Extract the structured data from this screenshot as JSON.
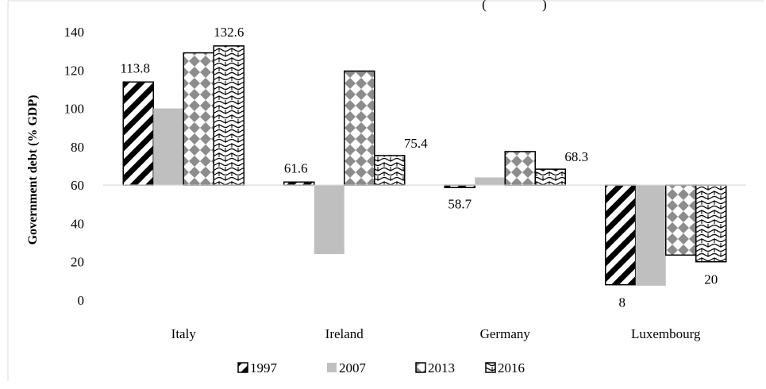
{
  "chart_data": {
    "type": "bar",
    "title_fragment": "(",
    "title_fragment_close": ")",
    "ylabel": "Government debt (% GDP)",
    "ylim": [
      0,
      140
    ],
    "yticks": [
      0,
      20,
      40,
      60,
      80,
      100,
      120,
      140
    ],
    "baseline": 60,
    "grid": false,
    "legend_position": "bottom",
    "categories": [
      "Italy",
      "Ireland",
      "Germany",
      "Luxembourg"
    ],
    "series": [
      {
        "name": "1997",
        "pattern": "diagonal-stripes",
        "values": [
          113.8,
          61.6,
          58.7,
          8
        ]
      },
      {
        "name": "2007",
        "pattern": "solid-gray",
        "values": [
          100,
          24,
          64,
          7.5
        ]
      },
      {
        "name": "2013",
        "pattern": "gray-diamonds",
        "values": [
          129,
          119.5,
          77.5,
          23.5
        ]
      },
      {
        "name": "2016",
        "pattern": "wave-hatch",
        "values": [
          132.6,
          75.4,
          68.3,
          20
        ]
      }
    ],
    "data_labels": [
      {
        "series": 0,
        "category": 0,
        "text": "113.8"
      },
      {
        "series": 3,
        "category": 0,
        "text": "132.6"
      },
      {
        "series": 0,
        "category": 1,
        "text": "61.6"
      },
      {
        "series": 3,
        "category": 1,
        "text": "75.4"
      },
      {
        "series": 0,
        "category": 2,
        "text": "58.7"
      },
      {
        "series": 3,
        "category": 2,
        "text": "68.3"
      },
      {
        "series": 0,
        "category": 3,
        "text": "8"
      },
      {
        "series": 3,
        "category": 3,
        "text": "20"
      }
    ],
    "colors": {
      "axis": "#d9d9d9",
      "bar_stroke": "#000000",
      "gray": "#bfbfbf",
      "diamond": "#8c8c8c"
    }
  }
}
